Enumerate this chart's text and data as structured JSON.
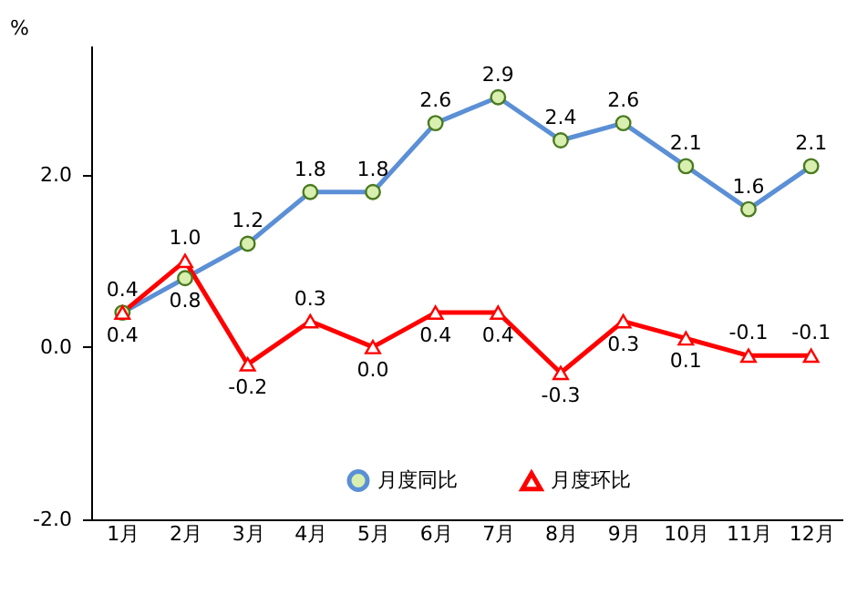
{
  "chart_data": {
    "type": "line",
    "ylabel": "%",
    "categories": [
      "1月",
      "2月",
      "3月",
      "4月",
      "5月",
      "6月",
      "7月",
      "8月",
      "9月",
      "10月",
      "11月",
      "12月"
    ],
    "series": [
      {
        "name": "月度同比",
        "color": "#5b8fd6",
        "marker": "circle",
        "values": [
          0.4,
          0.8,
          1.2,
          1.8,
          1.8,
          2.6,
          2.9,
          2.4,
          2.6,
          2.1,
          1.6,
          2.1
        ],
        "value_labels": [
          "0.4",
          "0.8",
          "1.2",
          "1.8",
          "1.8",
          "2.6",
          "2.9",
          "2.4",
          "2.6",
          "2.1",
          "1.6",
          "2.1"
        ]
      },
      {
        "name": "月度环比",
        "color": "#ff0000",
        "marker": "triangle",
        "values": [
          0.4,
          1.0,
          -0.2,
          0.3,
          0.0,
          0.4,
          0.4,
          -0.3,
          0.3,
          0.1,
          -0.1,
          -0.1
        ],
        "value_labels": [
          "0.4",
          "1.0",
          "-0.2",
          "0.3",
          "0.0",
          "0.4",
          "0.4",
          "-0.3",
          "0.3",
          "0.1",
          "-0.1",
          "-0.1"
        ]
      }
    ],
    "ylim": [
      -2,
      3.5
    ],
    "yticks": [
      {
        "value": -2,
        "label": "-2.0"
      },
      {
        "value": 0,
        "label": "0.0"
      },
      {
        "value": 2,
        "label": "2.0"
      }
    ],
    "grid": false,
    "legend": "bottom"
  }
}
